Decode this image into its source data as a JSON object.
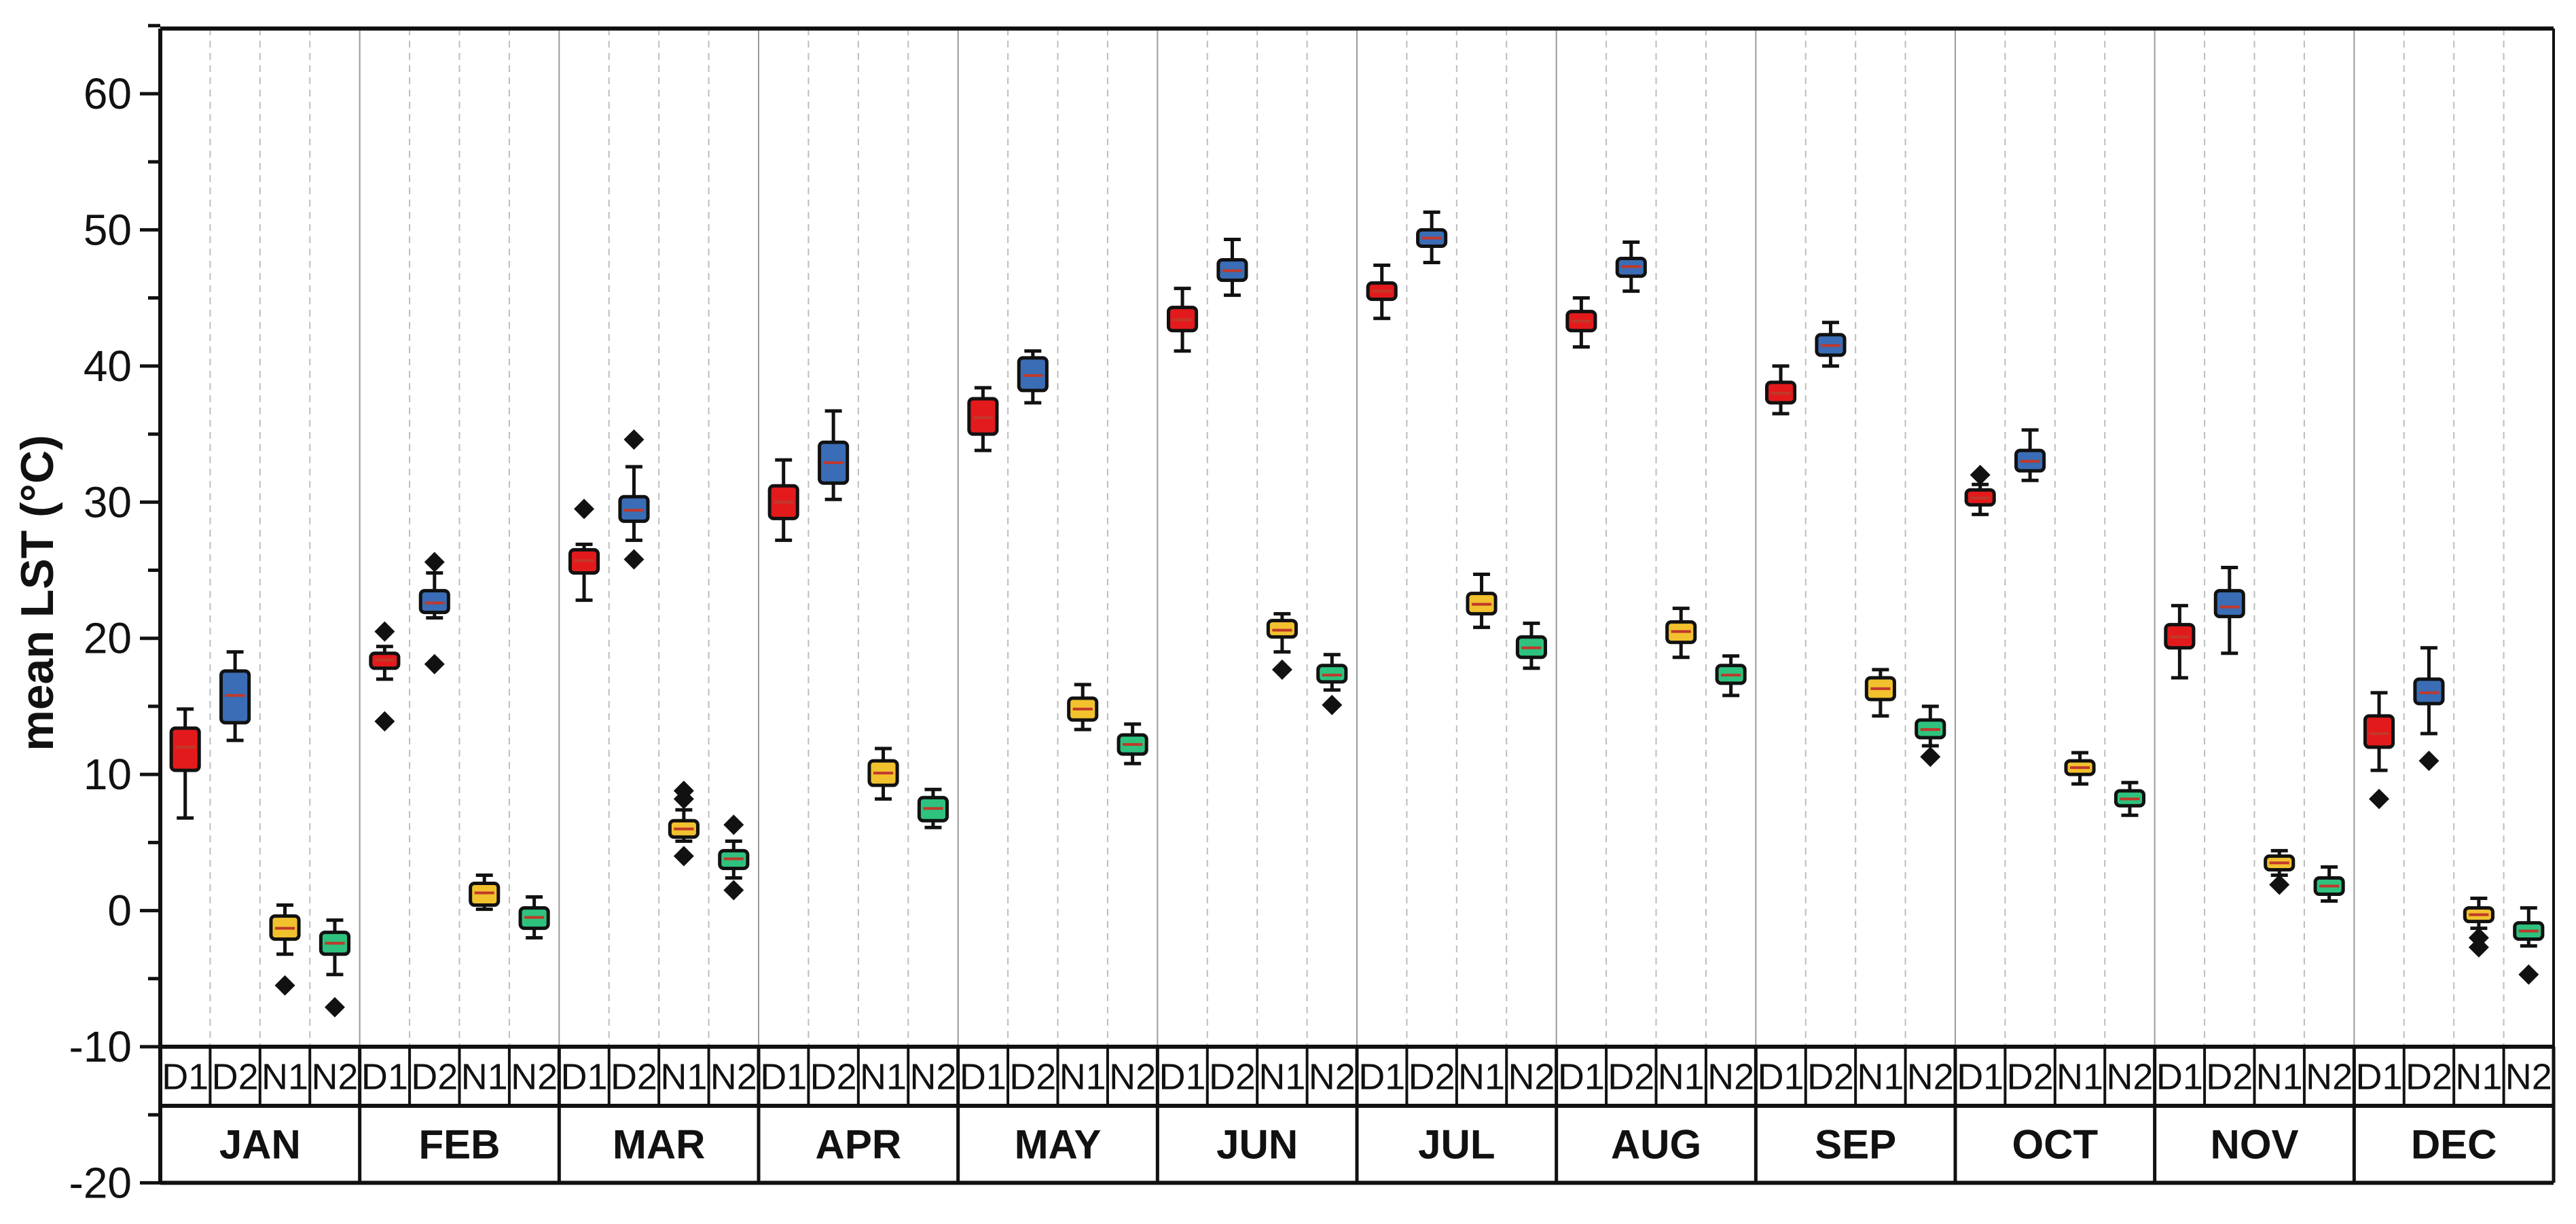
{
  "chart_data": {
    "type": "box",
    "ylabel": "mean LST (°C)",
    "xlabel": "",
    "ylim": [
      -20,
      65
    ],
    "plot_ylim": [
      -10,
      65
    ],
    "yticks": [
      60,
      50,
      40,
      30,
      20,
      10,
      0,
      -10,
      -20
    ],
    "minor_tick_step": 5,
    "grid": "vertical dashed lines between categories",
    "months": [
      "JAN",
      "FEB",
      "MAR",
      "APR",
      "MAY",
      "JUN",
      "JUL",
      "AUG",
      "SEP",
      "OCT",
      "NOV",
      "DEC"
    ],
    "categories": [
      "D1",
      "D2",
      "N1",
      "N2"
    ],
    "colors": {
      "D1": "#e31a1c",
      "D2": "#3a6db5",
      "N1": "#f2c12e",
      "N2": "#2ec27e",
      "median": "#c0392b",
      "outline": "#111111"
    },
    "series": [
      {
        "month": "JAN",
        "cat": "D1",
        "whislo": 6.8,
        "q1": 10.3,
        "med": 12.0,
        "q3": 13.4,
        "whishi": 14.8,
        "fliers": []
      },
      {
        "month": "JAN",
        "cat": "D2",
        "whislo": 12.5,
        "q1": 13.8,
        "med": 15.8,
        "q3": 17.6,
        "whishi": 19.0,
        "fliers": []
      },
      {
        "month": "JAN",
        "cat": "N1",
        "whislo": -3.2,
        "q1": -2.1,
        "med": -1.3,
        "q3": -0.4,
        "whishi": 0.4,
        "fliers": [
          -5.5
        ]
      },
      {
        "month": "JAN",
        "cat": "N2",
        "whislo": -4.7,
        "q1": -3.2,
        "med": -2.4,
        "q3": -1.6,
        "whishi": -0.7,
        "fliers": [
          -7.1
        ]
      },
      {
        "month": "FEB",
        "cat": "D1",
        "whislo": 17.0,
        "q1": 17.8,
        "med": 18.4,
        "q3": 18.9,
        "whishi": 19.4,
        "fliers": [
          20.5,
          13.9
        ]
      },
      {
        "month": "FEB",
        "cat": "D2",
        "whislo": 21.5,
        "q1": 21.9,
        "med": 22.6,
        "q3": 23.5,
        "whishi": 24.8,
        "fliers": [
          25.6,
          18.1
        ]
      },
      {
        "month": "FEB",
        "cat": "N1",
        "whislo": 0.1,
        "q1": 0.4,
        "med": 1.3,
        "q3": 2.0,
        "whishi": 2.6,
        "fliers": []
      },
      {
        "month": "FEB",
        "cat": "N2",
        "whislo": -2.0,
        "q1": -1.3,
        "med": -0.5,
        "q3": 0.2,
        "whishi": 1.0,
        "fliers": []
      },
      {
        "month": "MAR",
        "cat": "D1",
        "whislo": 22.8,
        "q1": 24.8,
        "med": 25.7,
        "q3": 26.5,
        "whishi": 26.9,
        "fliers": [
          29.5
        ]
      },
      {
        "month": "MAR",
        "cat": "D2",
        "whislo": 27.2,
        "q1": 28.6,
        "med": 29.4,
        "q3": 30.4,
        "whishi": 32.6,
        "fliers": [
          34.6,
          25.8
        ]
      },
      {
        "month": "MAR",
        "cat": "N1",
        "whislo": 5.1,
        "q1": 5.4,
        "med": 6.0,
        "q3": 6.6,
        "whishi": 7.4,
        "fliers": [
          8.8,
          8.2,
          4.0
        ]
      },
      {
        "month": "MAR",
        "cat": "N2",
        "whislo": 2.4,
        "q1": 3.1,
        "med": 3.8,
        "q3": 4.4,
        "whishi": 5.1,
        "fliers": [
          6.3,
          1.5
        ]
      },
      {
        "month": "APR",
        "cat": "D1",
        "whislo": 27.2,
        "q1": 28.8,
        "med": 30.0,
        "q3": 31.2,
        "whishi": 33.1,
        "fliers": []
      },
      {
        "month": "APR",
        "cat": "D2",
        "whislo": 30.2,
        "q1": 31.4,
        "med": 32.9,
        "q3": 34.4,
        "whishi": 36.7,
        "fliers": []
      },
      {
        "month": "APR",
        "cat": "N1",
        "whislo": 8.2,
        "q1": 9.2,
        "med": 10.1,
        "q3": 11.0,
        "whishi": 11.9,
        "fliers": []
      },
      {
        "month": "APR",
        "cat": "N2",
        "whislo": 6.1,
        "q1": 6.6,
        "med": 7.5,
        "q3": 8.3,
        "whishi": 8.9,
        "fliers": []
      },
      {
        "month": "MAY",
        "cat": "D1",
        "whislo": 33.8,
        "q1": 35.0,
        "med": 36.2,
        "q3": 37.6,
        "whishi": 38.4,
        "fliers": []
      },
      {
        "month": "MAY",
        "cat": "D2",
        "whislo": 37.3,
        "q1": 38.2,
        "med": 39.3,
        "q3": 40.6,
        "whishi": 41.1,
        "fliers": []
      },
      {
        "month": "MAY",
        "cat": "N1",
        "whislo": 13.3,
        "q1": 14.0,
        "med": 14.8,
        "q3": 15.6,
        "whishi": 16.6,
        "fliers": []
      },
      {
        "month": "MAY",
        "cat": "N2",
        "whislo": 10.8,
        "q1": 11.5,
        "med": 12.2,
        "q3": 12.9,
        "whishi": 13.7,
        "fliers": []
      },
      {
        "month": "JUN",
        "cat": "D1",
        "whislo": 41.1,
        "q1": 42.6,
        "med": 43.4,
        "q3": 44.3,
        "whishi": 45.7,
        "fliers": []
      },
      {
        "month": "JUN",
        "cat": "D2",
        "whislo": 45.2,
        "q1": 46.3,
        "med": 47.0,
        "q3": 47.8,
        "whishi": 49.3,
        "fliers": []
      },
      {
        "month": "JUN",
        "cat": "N1",
        "whislo": 19.0,
        "q1": 20.1,
        "med": 20.6,
        "q3": 21.3,
        "whishi": 21.8,
        "fliers": [
          17.7
        ]
      },
      {
        "month": "JUN",
        "cat": "N2",
        "whislo": 16.2,
        "q1": 16.8,
        "med": 17.3,
        "q3": 18.0,
        "whishi": 18.8,
        "fliers": [
          15.1
        ]
      },
      {
        "month": "JUL",
        "cat": "D1",
        "whislo": 43.5,
        "q1": 44.9,
        "med": 45.5,
        "q3": 46.1,
        "whishi": 47.4,
        "fliers": []
      },
      {
        "month": "JUL",
        "cat": "D2",
        "whislo": 47.6,
        "q1": 48.8,
        "med": 49.4,
        "q3": 50.0,
        "whishi": 51.3,
        "fliers": []
      },
      {
        "month": "JUL",
        "cat": "N1",
        "whislo": 20.8,
        "q1": 21.8,
        "med": 22.5,
        "q3": 23.3,
        "whishi": 24.7,
        "fliers": []
      },
      {
        "month": "JUL",
        "cat": "N2",
        "whislo": 17.8,
        "q1": 18.6,
        "med": 19.3,
        "q3": 20.1,
        "whishi": 21.1,
        "fliers": []
      },
      {
        "month": "AUG",
        "cat": "D1",
        "whislo": 41.4,
        "q1": 42.6,
        "med": 43.3,
        "q3": 44.0,
        "whishi": 45.0,
        "fliers": []
      },
      {
        "month": "AUG",
        "cat": "D2",
        "whislo": 45.5,
        "q1": 46.6,
        "med": 47.3,
        "q3": 47.9,
        "whishi": 49.1,
        "fliers": []
      },
      {
        "month": "AUG",
        "cat": "N1",
        "whislo": 18.6,
        "q1": 19.7,
        "med": 20.5,
        "q3": 21.2,
        "whishi": 22.2,
        "fliers": []
      },
      {
        "month": "AUG",
        "cat": "N2",
        "whislo": 15.8,
        "q1": 16.7,
        "med": 17.3,
        "q3": 18.0,
        "whishi": 18.7,
        "fliers": []
      },
      {
        "month": "SEP",
        "cat": "D1",
        "whislo": 36.5,
        "q1": 37.3,
        "med": 38.0,
        "q3": 38.8,
        "whishi": 40.0,
        "fliers": []
      },
      {
        "month": "SEP",
        "cat": "D2",
        "whislo": 40.0,
        "q1": 40.8,
        "med": 41.5,
        "q3": 42.3,
        "whishi": 43.2,
        "fliers": []
      },
      {
        "month": "SEP",
        "cat": "N1",
        "whislo": 14.3,
        "q1": 15.5,
        "med": 16.3,
        "q3": 17.1,
        "whishi": 17.7,
        "fliers": []
      },
      {
        "month": "SEP",
        "cat": "N2",
        "whislo": 12.1,
        "q1": 12.7,
        "med": 13.3,
        "q3": 14.0,
        "whishi": 15.0,
        "fliers": [
          11.3
        ]
      },
      {
        "month": "OCT",
        "cat": "D1",
        "whislo": 29.1,
        "q1": 29.8,
        "med": 30.3,
        "q3": 30.9,
        "whishi": 31.3,
        "fliers": [
          32.0
        ]
      },
      {
        "month": "OCT",
        "cat": "D2",
        "whislo": 31.6,
        "q1": 32.3,
        "med": 33.0,
        "q3": 33.8,
        "whishi": 35.3,
        "fliers": []
      },
      {
        "month": "OCT",
        "cat": "N1",
        "whislo": 9.3,
        "q1": 10.0,
        "med": 10.5,
        "q3": 11.0,
        "whishi": 11.6,
        "fliers": []
      },
      {
        "month": "OCT",
        "cat": "N2",
        "whislo": 7.0,
        "q1": 7.7,
        "med": 8.2,
        "q3": 8.8,
        "whishi": 9.4,
        "fliers": []
      },
      {
        "month": "NOV",
        "cat": "D1",
        "whislo": 17.1,
        "q1": 19.3,
        "med": 20.1,
        "q3": 21.0,
        "whishi": 22.4,
        "fliers": []
      },
      {
        "month": "NOV",
        "cat": "D2",
        "whislo": 18.9,
        "q1": 21.6,
        "med": 22.3,
        "q3": 23.5,
        "whishi": 25.2,
        "fliers": []
      },
      {
        "month": "NOV",
        "cat": "N1",
        "whislo": 2.6,
        "q1": 3.0,
        "med": 3.5,
        "q3": 4.0,
        "whishi": 4.4,
        "fliers": [
          1.9
        ]
      },
      {
        "month": "NOV",
        "cat": "N2",
        "whislo": 0.7,
        "q1": 1.2,
        "med": 1.8,
        "q3": 2.4,
        "whishi": 3.2,
        "fliers": []
      },
      {
        "month": "DEC",
        "cat": "D1",
        "whislo": 10.3,
        "q1": 12.0,
        "med": 13.0,
        "q3": 14.3,
        "whishi": 16.0,
        "fliers": [
          8.2
        ]
      },
      {
        "month": "DEC",
        "cat": "D2",
        "whislo": 13.0,
        "q1": 15.2,
        "med": 16.0,
        "q3": 17.0,
        "whishi": 19.3,
        "fliers": [
          11.0
        ]
      },
      {
        "month": "DEC",
        "cat": "N1",
        "whislo": -1.3,
        "q1": -0.8,
        "med": -0.3,
        "q3": 0.2,
        "whishi": 0.9,
        "fliers": [
          -2.0,
          -2.7
        ]
      },
      {
        "month": "DEC",
        "cat": "N2",
        "whislo": -2.6,
        "q1": -2.1,
        "med": -1.5,
        "q3": -0.9,
        "whishi": 0.2,
        "fliers": [
          -4.7
        ]
      }
    ]
  }
}
